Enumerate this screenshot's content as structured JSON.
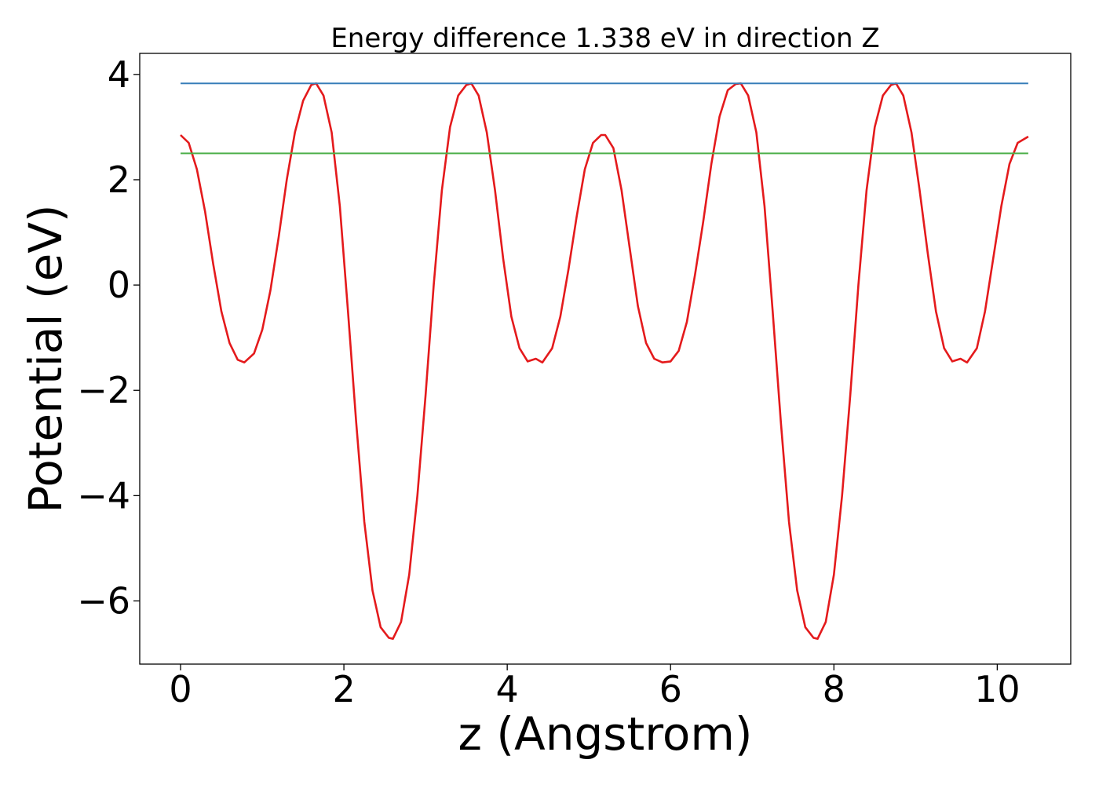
{
  "chart_data": {
    "type": "line",
    "title": "Energy difference 1.338 eV in direction Z",
    "xlabel": "z (Angstrom)",
    "ylabel": "Potential (eV)",
    "xlim": [
      -0.5,
      10.9
    ],
    "ylim": [
      -7.2,
      4.4
    ],
    "xticks": [
      0,
      2,
      4,
      6,
      8,
      10
    ],
    "xtick_labels": [
      "0",
      "2",
      "4",
      "6",
      "8",
      "10"
    ],
    "yticks": [
      4,
      2,
      0,
      -2,
      -4,
      -6
    ],
    "ytick_labels": [
      "4",
      "2",
      "0",
      "−2",
      "−4",
      "−6"
    ],
    "grid": false,
    "series": [
      {
        "color": "#e41a1c",
        "x": [
          0.0,
          0.1,
          0.2,
          0.3,
          0.4,
          0.5,
          0.6,
          0.7,
          0.78,
          0.9,
          1.0,
          1.1,
          1.2,
          1.3,
          1.4,
          1.5,
          1.6,
          1.66,
          1.75,
          1.85,
          1.95,
          2.05,
          2.15,
          2.25,
          2.35,
          2.45,
          2.55,
          2.6,
          2.7,
          2.8,
          2.9,
          3.0,
          3.1,
          3.2,
          3.3,
          3.4,
          3.5,
          3.56,
          3.65,
          3.75,
          3.85,
          3.95,
          4.05,
          4.15,
          4.25,
          4.35,
          4.43,
          4.55,
          4.65,
          4.75,
          4.85,
          4.95,
          5.05,
          5.15,
          5.2,
          5.3,
          5.4,
          5.5,
          5.6,
          5.7,
          5.8,
          5.9,
          6.0,
          6.1,
          6.2,
          6.3,
          6.4,
          6.5,
          6.6,
          6.7,
          6.8,
          6.86,
          6.95,
          7.05,
          7.15,
          7.25,
          7.35,
          7.45,
          7.55,
          7.65,
          7.75,
          7.8,
          7.9,
          8.0,
          8.1,
          8.2,
          8.3,
          8.4,
          8.5,
          8.6,
          8.7,
          8.76,
          8.85,
          8.95,
          9.05,
          9.15,
          9.25,
          9.35,
          9.45,
          9.55,
          9.63,
          9.75,
          9.85,
          9.95,
          10.05,
          10.15,
          10.25,
          10.38
        ],
        "y": [
          2.85,
          2.7,
          2.2,
          1.4,
          0.4,
          -0.5,
          -1.1,
          -1.42,
          -1.47,
          -1.3,
          -0.85,
          -0.1,
          0.9,
          2.0,
          2.9,
          3.5,
          3.8,
          3.83,
          3.6,
          2.9,
          1.5,
          -0.5,
          -2.6,
          -4.5,
          -5.8,
          -6.5,
          -6.7,
          -6.72,
          -6.4,
          -5.5,
          -4.0,
          -2.1,
          0.0,
          1.8,
          3.0,
          3.6,
          3.8,
          3.83,
          3.6,
          2.9,
          1.8,
          0.5,
          -0.6,
          -1.2,
          -1.45,
          -1.4,
          -1.47,
          -1.2,
          -0.6,
          0.3,
          1.3,
          2.2,
          2.7,
          2.85,
          2.85,
          2.6,
          1.8,
          0.7,
          -0.4,
          -1.1,
          -1.4,
          -1.47,
          -1.45,
          -1.25,
          -0.7,
          0.2,
          1.2,
          2.3,
          3.2,
          3.7,
          3.82,
          3.83,
          3.6,
          2.9,
          1.5,
          -0.5,
          -2.6,
          -4.5,
          -5.8,
          -6.5,
          -6.7,
          -6.72,
          -6.4,
          -5.5,
          -4.0,
          -2.1,
          0.0,
          1.8,
          3.0,
          3.6,
          3.8,
          3.83,
          3.6,
          2.9,
          1.8,
          0.6,
          -0.5,
          -1.2,
          -1.45,
          -1.4,
          -1.47,
          -1.2,
          -0.5,
          0.5,
          1.5,
          2.3,
          2.7,
          2.82
        ]
      },
      {
        "color": "#377eb8",
        "x": [
          0.0,
          10.38
        ],
        "y": [
          3.83,
          3.83
        ]
      },
      {
        "color": "#4daf4a",
        "x": [
          0.0,
          10.38
        ],
        "y": [
          2.5,
          2.5
        ]
      }
    ]
  }
}
